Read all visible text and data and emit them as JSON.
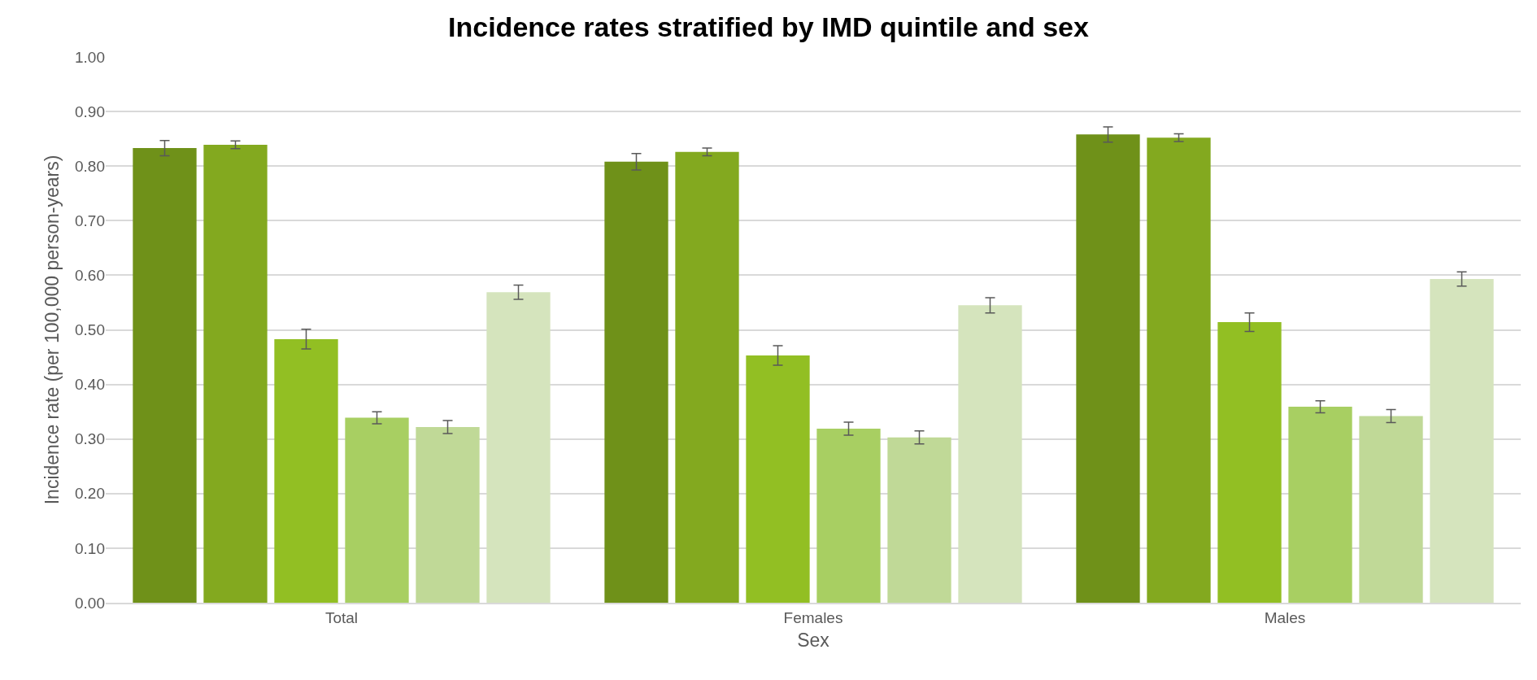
{
  "chart_data": {
    "type": "bar",
    "title": "Incidence rates stratified by IMD quintile and sex",
    "xlabel": "Sex",
    "ylabel": "Incidence rate (per 100,000 person-years)",
    "categories": [
      "Total",
      "Females",
      "Males"
    ],
    "series": [
      {
        "color": "#6f9119",
        "values": [
          0.833,
          0.808,
          0.858
        ],
        "errors": [
          0.014,
          0.015,
          0.014
        ]
      },
      {
        "color": "#83a91f",
        "values": [
          0.839,
          0.826,
          0.852
        ],
        "errors": [
          0.007,
          0.007,
          0.007
        ]
      },
      {
        "color": "#92bf23",
        "values": [
          0.483,
          0.453,
          0.514
        ],
        "errors": [
          0.018,
          0.018,
          0.017
        ]
      },
      {
        "color": "#a8cf62",
        "values": [
          0.339,
          0.319,
          0.359
        ],
        "errors": [
          0.011,
          0.012,
          0.011
        ]
      },
      {
        "color": "#c0d997",
        "values": [
          0.322,
          0.303,
          0.342
        ],
        "errors": [
          0.012,
          0.012,
          0.012
        ]
      },
      {
        "color": "#d5e4bd",
        "values": [
          0.569,
          0.545,
          0.593
        ],
        "errors": [
          0.013,
          0.014,
          0.013
        ]
      }
    ],
    "ylim": [
      0,
      1
    ],
    "yticks": [
      {
        "value": 0,
        "label": "0.00"
      },
      {
        "value": 0.1,
        "label": "0.10"
      },
      {
        "value": 0.2,
        "label": "0.20"
      },
      {
        "value": 0.3,
        "label": "0.30"
      },
      {
        "value": 0.4,
        "label": "0.40"
      },
      {
        "value": 0.5,
        "label": "0.50"
      },
      {
        "value": 0.6,
        "label": "0.60"
      },
      {
        "value": 0.7,
        "label": "0.70"
      },
      {
        "value": 0.8,
        "label": "0.80"
      },
      {
        "value": 0.9,
        "label": "0.90"
      },
      {
        "value": 1,
        "label": "1.00"
      }
    ],
    "grid": "y"
  }
}
